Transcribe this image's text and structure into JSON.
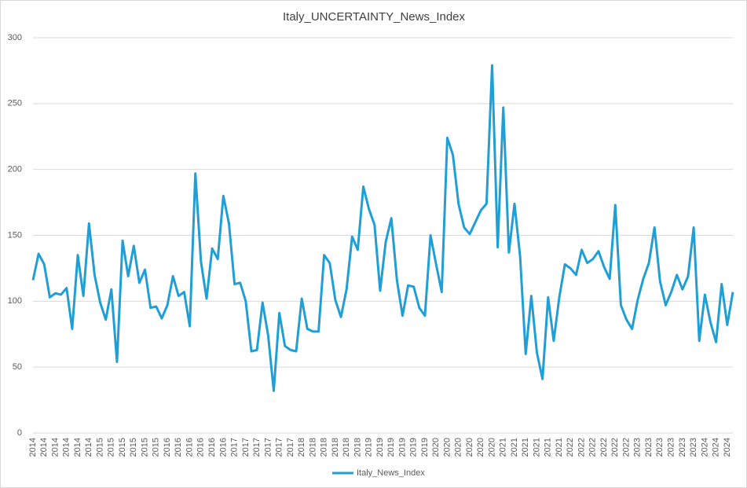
{
  "chart_data": {
    "type": "line",
    "title": "Italy_UNCERTAINTY_News_Index",
    "categories": [
      "2014",
      null,
      "2014",
      null,
      "2014",
      null,
      "2014",
      null,
      "2014",
      null,
      "2014",
      null,
      "2015",
      null,
      "2015",
      null,
      "2015",
      null,
      "2015",
      null,
      "2015",
      null,
      "2015",
      null,
      "2016",
      null,
      "2016",
      null,
      "2016",
      null,
      "2016",
      null,
      "2016",
      null,
      "2016",
      null,
      "2017",
      null,
      "2017",
      null,
      "2017",
      null,
      "2017",
      null,
      "2017",
      null,
      "2017",
      null,
      "2018",
      null,
      "2018",
      null,
      "2018",
      null,
      "2018",
      null,
      "2018",
      null,
      "2018",
      null,
      "2019",
      null,
      "2019",
      null,
      "2019",
      null,
      "2019",
      null,
      "2019",
      null,
      "2019",
      null,
      "2020",
      null,
      "2020",
      null,
      "2020",
      null,
      "2020",
      null,
      "2020",
      null,
      "2020",
      null,
      "2021",
      null,
      "2021",
      null,
      "2021",
      null,
      "2021",
      null,
      "2021",
      null,
      "2021",
      null,
      "2022",
      null,
      "2022",
      null,
      "2022",
      null,
      "2022",
      null,
      "2022",
      null,
      "2022",
      null,
      "2023",
      null,
      "2023",
      null,
      "2023",
      null,
      "2023",
      null,
      "2023",
      null,
      "2023",
      null,
      "2024",
      null,
      "2024",
      null,
      "2024",
      null
    ],
    "series": [
      {
        "name": "Italy_News_Index",
        "color": "#1f9fd6",
        "values": [
          116,
          136,
          128,
          103,
          106,
          105,
          110,
          79,
          135,
          104,
          159,
          120,
          99,
          86,
          109,
          54,
          146,
          119,
          142,
          114,
          124,
          95,
          96,
          87,
          97,
          119,
          104,
          107,
          81,
          197,
          130,
          102,
          140,
          132,
          180,
          159,
          113,
          114,
          100,
          62,
          63,
          99,
          74,
          32,
          91,
          66,
          63,
          62,
          102,
          79,
          77,
          77,
          135,
          129,
          101,
          88,
          109,
          149,
          139,
          187,
          170,
          158,
          108,
          145,
          163,
          116,
          89,
          112,
          111,
          95,
          89,
          150,
          128,
          107,
          224,
          211,
          174,
          156,
          151,
          160,
          169,
          174,
          279,
          141,
          247,
          137,
          174,
          134,
          60,
          104,
          61,
          41,
          103,
          70,
          103,
          128,
          125,
          120,
          139,
          129,
          132,
          138,
          126,
          117,
          173,
          97,
          86,
          79,
          101,
          117,
          129,
          156,
          115,
          97,
          107,
          120,
          109,
          119,
          156,
          70,
          105,
          84,
          69,
          113,
          82,
          107
        ]
      }
    ],
    "ylim": [
      0,
      300
    ],
    "yticks": [
      0,
      50,
      100,
      150,
      200,
      250,
      300
    ],
    "grid": true,
    "legend": "bottom"
  }
}
